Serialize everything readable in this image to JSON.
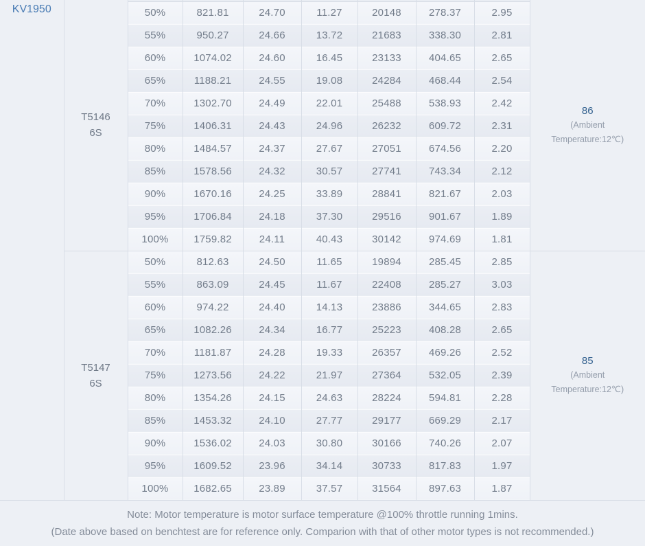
{
  "kv_label": "KV1950",
  "table": {
    "groups": [
      {
        "model": "T5146",
        "battery": "6S",
        "temp_value": "86",
        "ambient_line1": "(Ambient",
        "ambient_line2": "Temperature:12℃)",
        "rows": [
          [
            "50%",
            "821.81",
            "24.70",
            "11.27",
            "20148",
            "278.37",
            "2.95"
          ],
          [
            "55%",
            "950.27",
            "24.66",
            "13.72",
            "21683",
            "338.30",
            "2.81"
          ],
          [
            "60%",
            "1074.02",
            "24.60",
            "16.45",
            "23133",
            "404.65",
            "2.65"
          ],
          [
            "65%",
            "1188.21",
            "24.55",
            "19.08",
            "24284",
            "468.44",
            "2.54"
          ],
          [
            "70%",
            "1302.70",
            "24.49",
            "22.01",
            "25488",
            "538.93",
            "2.42"
          ],
          [
            "75%",
            "1406.31",
            "24.43",
            "24.96",
            "26232",
            "609.72",
            "2.31"
          ],
          [
            "80%",
            "1484.57",
            "24.37",
            "27.67",
            "27051",
            "674.56",
            "2.20"
          ],
          [
            "85%",
            "1578.56",
            "24.32",
            "30.57",
            "27741",
            "743.34",
            "2.12"
          ],
          [
            "90%",
            "1670.16",
            "24.25",
            "33.89",
            "28841",
            "821.67",
            "2.03"
          ],
          [
            "95%",
            "1706.84",
            "24.18",
            "37.30",
            "29516",
            "901.67",
            "1.89"
          ],
          [
            "100%",
            "1759.82",
            "24.11",
            "40.43",
            "30142",
            "974.69",
            "1.81"
          ]
        ]
      },
      {
        "model": "T5147",
        "battery": "6S",
        "temp_value": "85",
        "ambient_line1": "(Ambient",
        "ambient_line2": "Temperature:12℃)",
        "rows": [
          [
            "50%",
            "812.63",
            "24.50",
            "11.65",
            "19894",
            "285.45",
            "2.85"
          ],
          [
            "55%",
            "863.09",
            "24.45",
            "11.67",
            "22408",
            "285.27",
            "3.03"
          ],
          [
            "60%",
            "974.22",
            "24.40",
            "14.13",
            "23886",
            "344.65",
            "2.83"
          ],
          [
            "65%",
            "1082.26",
            "24.34",
            "16.77",
            "25223",
            "408.28",
            "2.65"
          ],
          [
            "70%",
            "1181.87",
            "24.28",
            "19.33",
            "26357",
            "469.26",
            "2.52"
          ],
          [
            "75%",
            "1273.56",
            "24.22",
            "21.97",
            "27364",
            "532.05",
            "2.39"
          ],
          [
            "80%",
            "1354.26",
            "24.15",
            "24.63",
            "28224",
            "594.81",
            "2.28"
          ],
          [
            "85%",
            "1453.32",
            "24.10",
            "27.77",
            "29177",
            "669.29",
            "2.17"
          ],
          [
            "90%",
            "1536.02",
            "24.03",
            "30.80",
            "30166",
            "740.26",
            "2.07"
          ],
          [
            "95%",
            "1609.52",
            "23.96",
            "34.14",
            "30733",
            "817.83",
            "1.97"
          ],
          [
            "100%",
            "1682.65",
            "23.89",
            "37.57",
            "31564",
            "897.63",
            "1.87"
          ]
        ]
      }
    ]
  },
  "footer": {
    "line1": "Note: Motor temperature is motor surface temperature @100% throttle running 1mins.",
    "line2": "(Date above based on benchtest are for reference only. Comparion with that of other motor types is not recommended.)"
  },
  "colors": {
    "accent_blue": "#4a7cb4",
    "temperature_blue": "#33618f",
    "row_light": "#f2f4f8",
    "row_dark": "#e9edf3",
    "border": "#d8dee7",
    "background": "#edf0f5",
    "data_text": "#737d8b"
  }
}
